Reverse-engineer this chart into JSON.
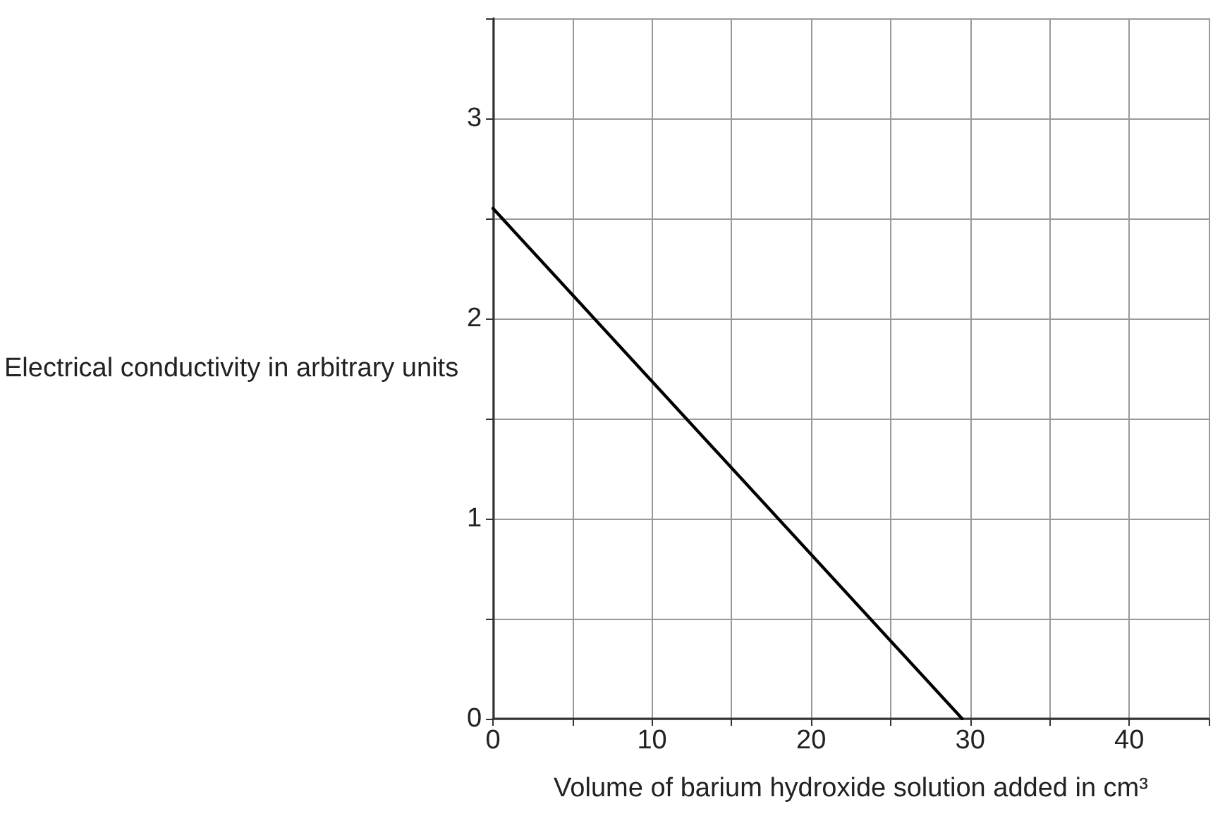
{
  "chart_data": {
    "type": "line",
    "xlabel": "Volume of barium hydroxide solution added in cm³",
    "ylabel": "Electrical conductivity in arbitrary units",
    "x": [
      0,
      29.5
    ],
    "series": [
      {
        "color": "#000000",
        "values": [
          2.55,
          0
        ]
      }
    ],
    "xlim": [
      0,
      45
    ],
    "xticks": [
      0,
      {
        "value": 5,
        "label": null
      },
      10,
      {
        "value": 15,
        "label": null
      },
      20,
      {
        "value": 25,
        "label": null
      },
      30,
      {
        "value": 35,
        "label": null
      },
      40,
      {
        "value": 45,
        "label": null
      }
    ],
    "ylim": [
      0,
      3.5
    ],
    "yticks": [
      0,
      {
        "value": 0.5,
        "label": null
      },
      1,
      {
        "value": 1.5,
        "label": null
      },
      2,
      {
        "value": 2.5,
        "label": null
      },
      3,
      {
        "value": 3.5,
        "label": null
      }
    ],
    "grid": true,
    "marker": "none",
    "line_style": "solid"
  }
}
